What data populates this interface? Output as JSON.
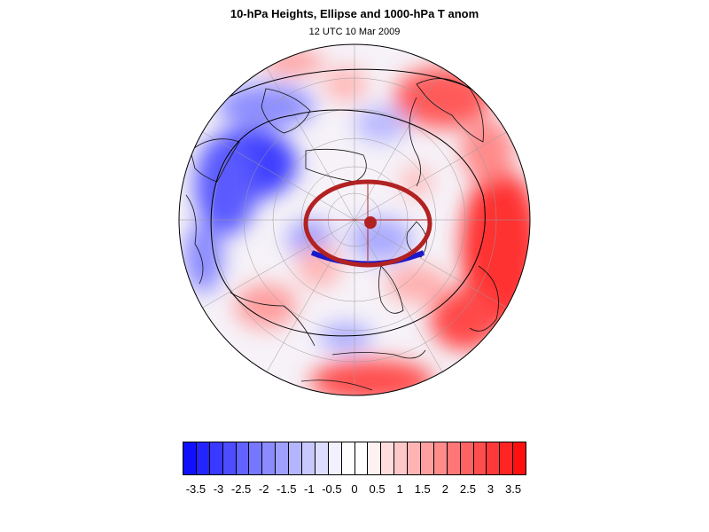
{
  "header": {
    "title": "10-hPa Heights, Ellipse and 1000-hPa T anom",
    "subtitle": "12 UTC 10 Mar 2009"
  },
  "map": {
    "projection": "polar stereographic (north pole)",
    "field": "1000-hPa temperature anomaly (shaded)",
    "contour_color": "#000000",
    "ellipse": {
      "color": "#b22222",
      "lower_edge_highlight_color": "#1a1acc",
      "center_marker_color": "#b22222"
    }
  },
  "colorbar": {
    "colors": [
      "#1010ff",
      "#2424ff",
      "#3939ff",
      "#4d4dff",
      "#6262ff",
      "#7676ff",
      "#8b8bff",
      "#9f9fff",
      "#b4b4ff",
      "#c8c8ff",
      "#ddddff",
      "#f1f1ff",
      "#ffffff",
      "#ffffff",
      "#fff1f1",
      "#ffdddd",
      "#ffc8c8",
      "#ffb4b4",
      "#ff9f9f",
      "#ff8b8b",
      "#ff7676",
      "#ff6262",
      "#ff4d4d",
      "#ff3939",
      "#ff2424",
      "#ff1010"
    ],
    "tick_labels": [
      "-3.5",
      "-3",
      "-2.5",
      "-2",
      "-1.5",
      "-1",
      "-0.5",
      "0",
      "0.5",
      "1",
      "1.5",
      "2",
      "2.5",
      "3",
      "3.5"
    ]
  }
}
